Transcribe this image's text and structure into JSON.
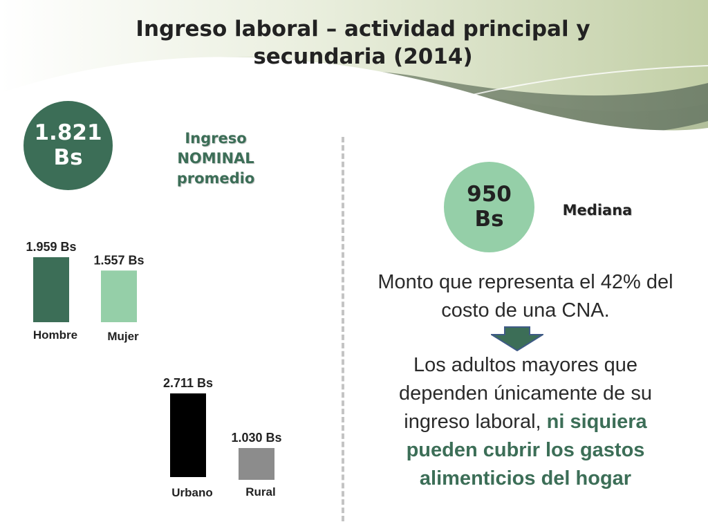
{
  "title": "Ingreso laboral – actividad principal y secundaria (2014)",
  "mean": {
    "value": "1.821\nBs",
    "label": "Ingreso\nNOMINAL\npromedio"
  },
  "median": {
    "value": "950\nBs",
    "label": "Mediana"
  },
  "notes": {
    "first": "Monto que representa el 42% del costo de una CNA.",
    "second_plain": "Los adultos mayores que dependen únicamente de su ingreso laboral, ",
    "second_highlight": "ni siquiera pueden cubrir los gastos alimenticios del hogar"
  },
  "colors": {
    "dark_green": "#3c6e57",
    "light_green": "#95cfa8",
    "black": "#000000",
    "gray": "#8c8c8c",
    "arrow_fill": "#3c6e57",
    "arrow_stroke": "#3f5b86"
  },
  "chart_data": [
    {
      "type": "bar",
      "categories": [
        "Hombre",
        "Mujer"
      ],
      "values": [
        1959,
        1557
      ],
      "data_labels": [
        "1.959 Bs",
        "1.557 Bs"
      ],
      "colors": [
        "#3c6e57",
        "#95cfa8"
      ]
    },
    {
      "type": "bar",
      "categories": [
        "Urbano",
        "Rural"
      ],
      "values": [
        2711,
        1030
      ],
      "data_labels": [
        "2.711 Bs",
        "1.030 Bs"
      ],
      "colors": [
        "#000000",
        "#8c8c8c"
      ]
    }
  ]
}
